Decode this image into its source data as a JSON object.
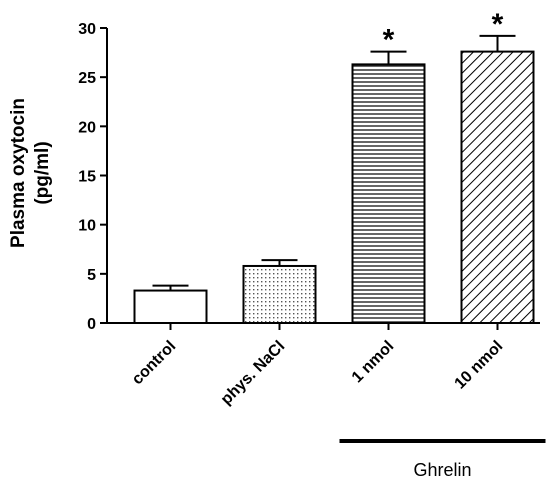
{
  "chart_data": {
    "type": "bar",
    "categories": [
      "control",
      "phys. NaCl",
      "1 nmol",
      "10 nmol"
    ],
    "values": [
      3.3,
      5.8,
      26.3,
      27.6
    ],
    "errors": [
      0.5,
      0.6,
      1.3,
      1.6
    ],
    "significance": [
      "",
      "",
      "*",
      "*"
    ],
    "patterns": [
      "none",
      "dots",
      "horizontal-lines",
      "diagonal-lines"
    ],
    "ylabel_line1": "Plasma oxytocin",
    "ylabel_line2": "(pg/ml)",
    "ylim": [
      0,
      30
    ],
    "yticks": [
      0,
      5,
      10,
      15,
      20,
      25,
      30
    ],
    "group_label": "Ghrelin",
    "group_span": [
      "1 nmol",
      "10 nmol"
    ],
    "grid": false
  }
}
